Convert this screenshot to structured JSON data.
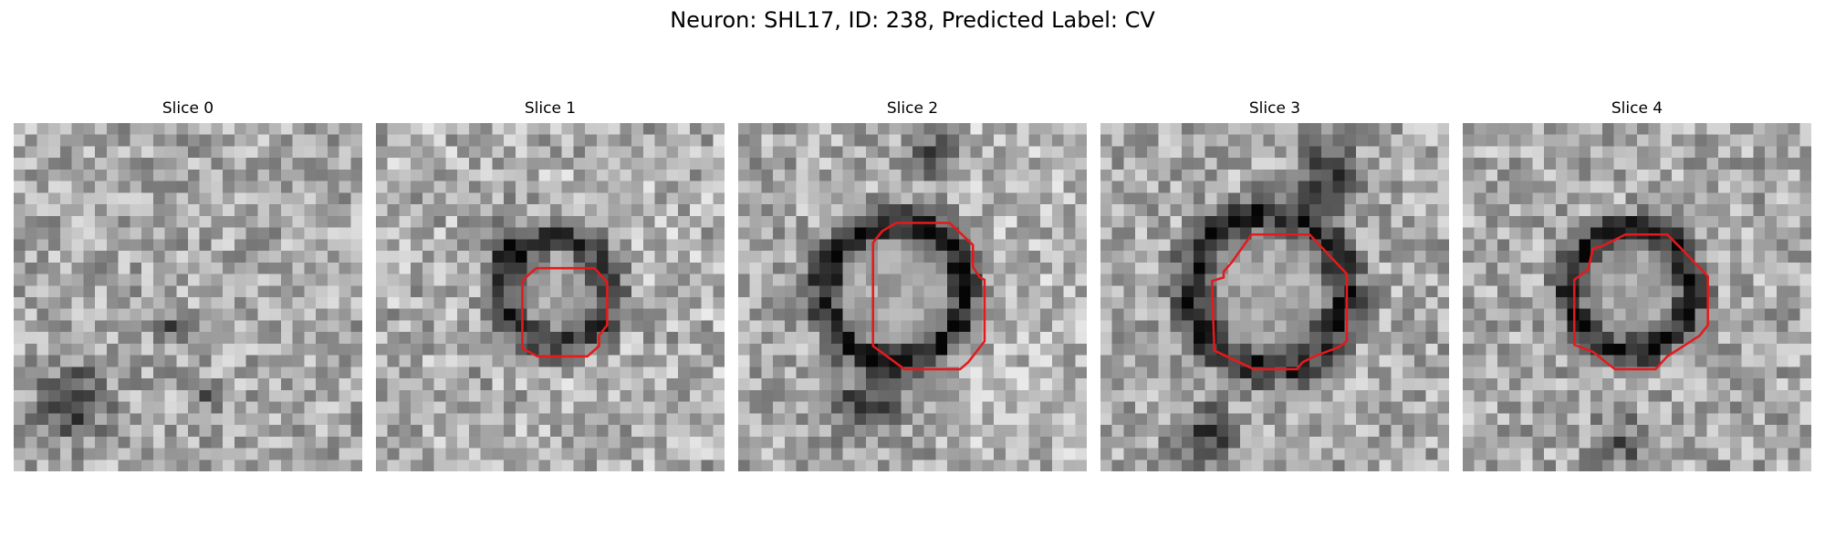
{
  "figure": {
    "title": "Neuron: SHL17, ID: 238, Predicted Label: CV"
  },
  "panels": [
    {
      "title": "Slice 0",
      "has_contour": false
    },
    {
      "title": "Slice 1",
      "has_contour": true
    },
    {
      "title": "Slice 2",
      "has_contour": true
    },
    {
      "title": "Slice 3",
      "has_contour": true
    },
    {
      "title": "Slice 4",
      "has_contour": true
    }
  ],
  "colors": {
    "contour": "#e41a1c",
    "background": "#ffffff"
  }
}
